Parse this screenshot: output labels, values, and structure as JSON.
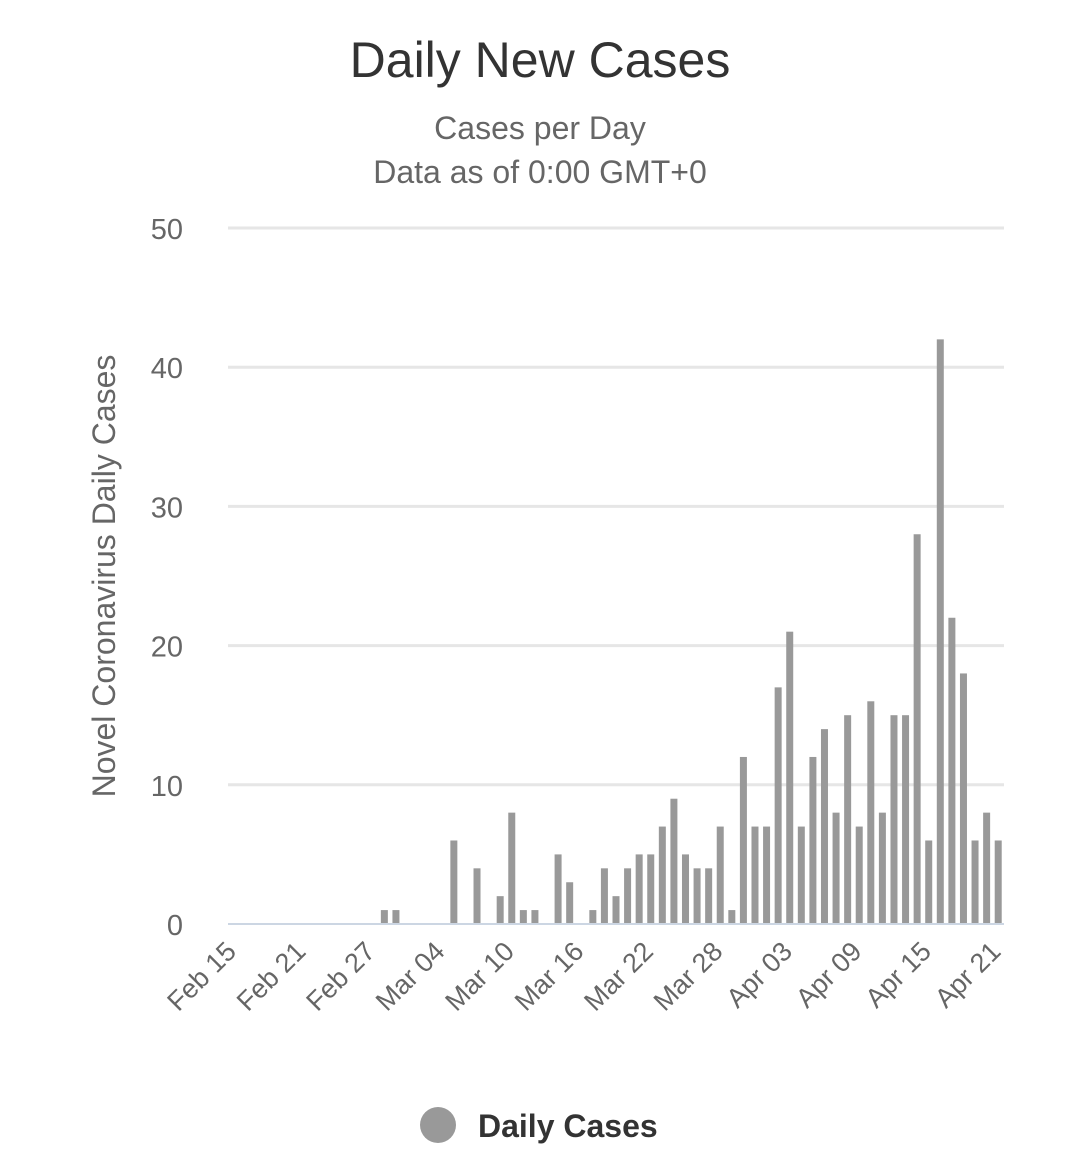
{
  "chart_data": {
    "type": "bar",
    "title": "Daily New Cases",
    "subtitle": [
      "Cases per Day",
      "Data as of 0:00 GMT+0"
    ],
    "ylabel": "Novel Coronavirus Daily Cases",
    "xlabel": "",
    "ylim": [
      0,
      50
    ],
    "yticks": [
      0,
      10,
      20,
      30,
      40,
      50
    ],
    "grid": true,
    "legend": {
      "position": "bottom",
      "entries": [
        {
          "name": "Daily Cases",
          "color": "#999999"
        }
      ]
    },
    "categories": [
      "Feb 15",
      "Feb 16",
      "Feb 17",
      "Feb 18",
      "Feb 19",
      "Feb 20",
      "Feb 21",
      "Feb 22",
      "Feb 23",
      "Feb 24",
      "Feb 25",
      "Feb 26",
      "Feb 27",
      "Feb 28",
      "Feb 29",
      "Mar 01",
      "Mar 02",
      "Mar 03",
      "Mar 04",
      "Mar 05",
      "Mar 06",
      "Mar 07",
      "Mar 08",
      "Mar 09",
      "Mar 10",
      "Mar 11",
      "Mar 12",
      "Mar 13",
      "Mar 14",
      "Mar 15",
      "Mar 16",
      "Mar 17",
      "Mar 18",
      "Mar 19",
      "Mar 20",
      "Mar 21",
      "Mar 22",
      "Mar 23",
      "Mar 24",
      "Mar 25",
      "Mar 26",
      "Mar 27",
      "Mar 28",
      "Mar 29",
      "Mar 30",
      "Mar 31",
      "Apr 01",
      "Apr 02",
      "Apr 03",
      "Apr 04",
      "Apr 05",
      "Apr 06",
      "Apr 07",
      "Apr 08",
      "Apr 09",
      "Apr 10",
      "Apr 11",
      "Apr 12",
      "Apr 13",
      "Apr 14",
      "Apr 15",
      "Apr 16",
      "Apr 17",
      "Apr 18",
      "Apr 19",
      "Apr 20",
      "Apr 21"
    ],
    "xtick_labels": [
      "Feb 15",
      "Feb 21",
      "Feb 27",
      "Mar 04",
      "Mar 10",
      "Mar 16",
      "Mar 22",
      "Mar 28",
      "Apr 03",
      "Apr 09",
      "Apr 15",
      "Apr 21"
    ],
    "series": [
      {
        "name": "Daily Cases",
        "color": "#999999",
        "values": [
          0,
          0,
          0,
          0,
          0,
          0,
          0,
          0,
          0,
          0,
          0,
          0,
          0,
          1,
          1,
          0,
          0,
          0,
          0,
          6,
          0,
          4,
          0,
          2,
          8,
          1,
          1,
          0,
          5,
          3,
          0,
          1,
          4,
          2,
          4,
          5,
          5,
          7,
          9,
          5,
          4,
          4,
          7,
          1,
          12,
          7,
          7,
          17,
          21,
          7,
          12,
          14,
          8,
          15,
          7,
          16,
          8,
          15,
          15,
          28,
          6,
          42,
          22,
          18,
          6,
          8,
          6
        ]
      }
    ]
  }
}
